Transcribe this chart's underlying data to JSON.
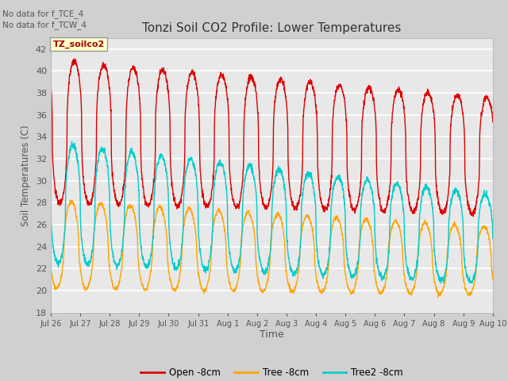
{
  "title": "Tonzi Soil CO2 Profile: Lower Temperatures",
  "xlabel": "Time",
  "ylabel": "Soil Temperatures (C)",
  "ylim": [
    18,
    43
  ],
  "yticks": [
    18,
    20,
    22,
    24,
    26,
    28,
    30,
    32,
    34,
    36,
    38,
    40,
    42
  ],
  "xlim": [
    0,
    15
  ],
  "annotation1": "No data for f_TCE_4",
  "annotation2": "No data for f_TCW_4",
  "box_label": "TZ_soilco2",
  "bg_color": "#e0e0e0",
  "plot_bg": "#e8e8e8",
  "grid_color": "#ffffff",
  "open_color": "#dd0000",
  "tree_color": "#ffa500",
  "tree2_color": "#00cccc",
  "legend_labels": [
    "Open -8cm",
    "Tree -8cm",
    "Tree2 -8cm"
  ],
  "xtick_labels": [
    "Jul 26",
    "Jul 27",
    "Jul 28",
    "Jul 29",
    "Jul 30",
    "Jul 31",
    "Aug 1",
    "Aug 2",
    "Aug 3",
    "Aug 4",
    "Aug 5",
    "Aug 6",
    "Aug 7",
    "Aug 8",
    "Aug 9",
    "Aug 10"
  ],
  "xtick_positions": [
    0,
    1,
    2,
    3,
    4,
    5,
    6,
    7,
    8,
    9,
    10,
    11,
    12,
    13,
    14,
    15
  ]
}
